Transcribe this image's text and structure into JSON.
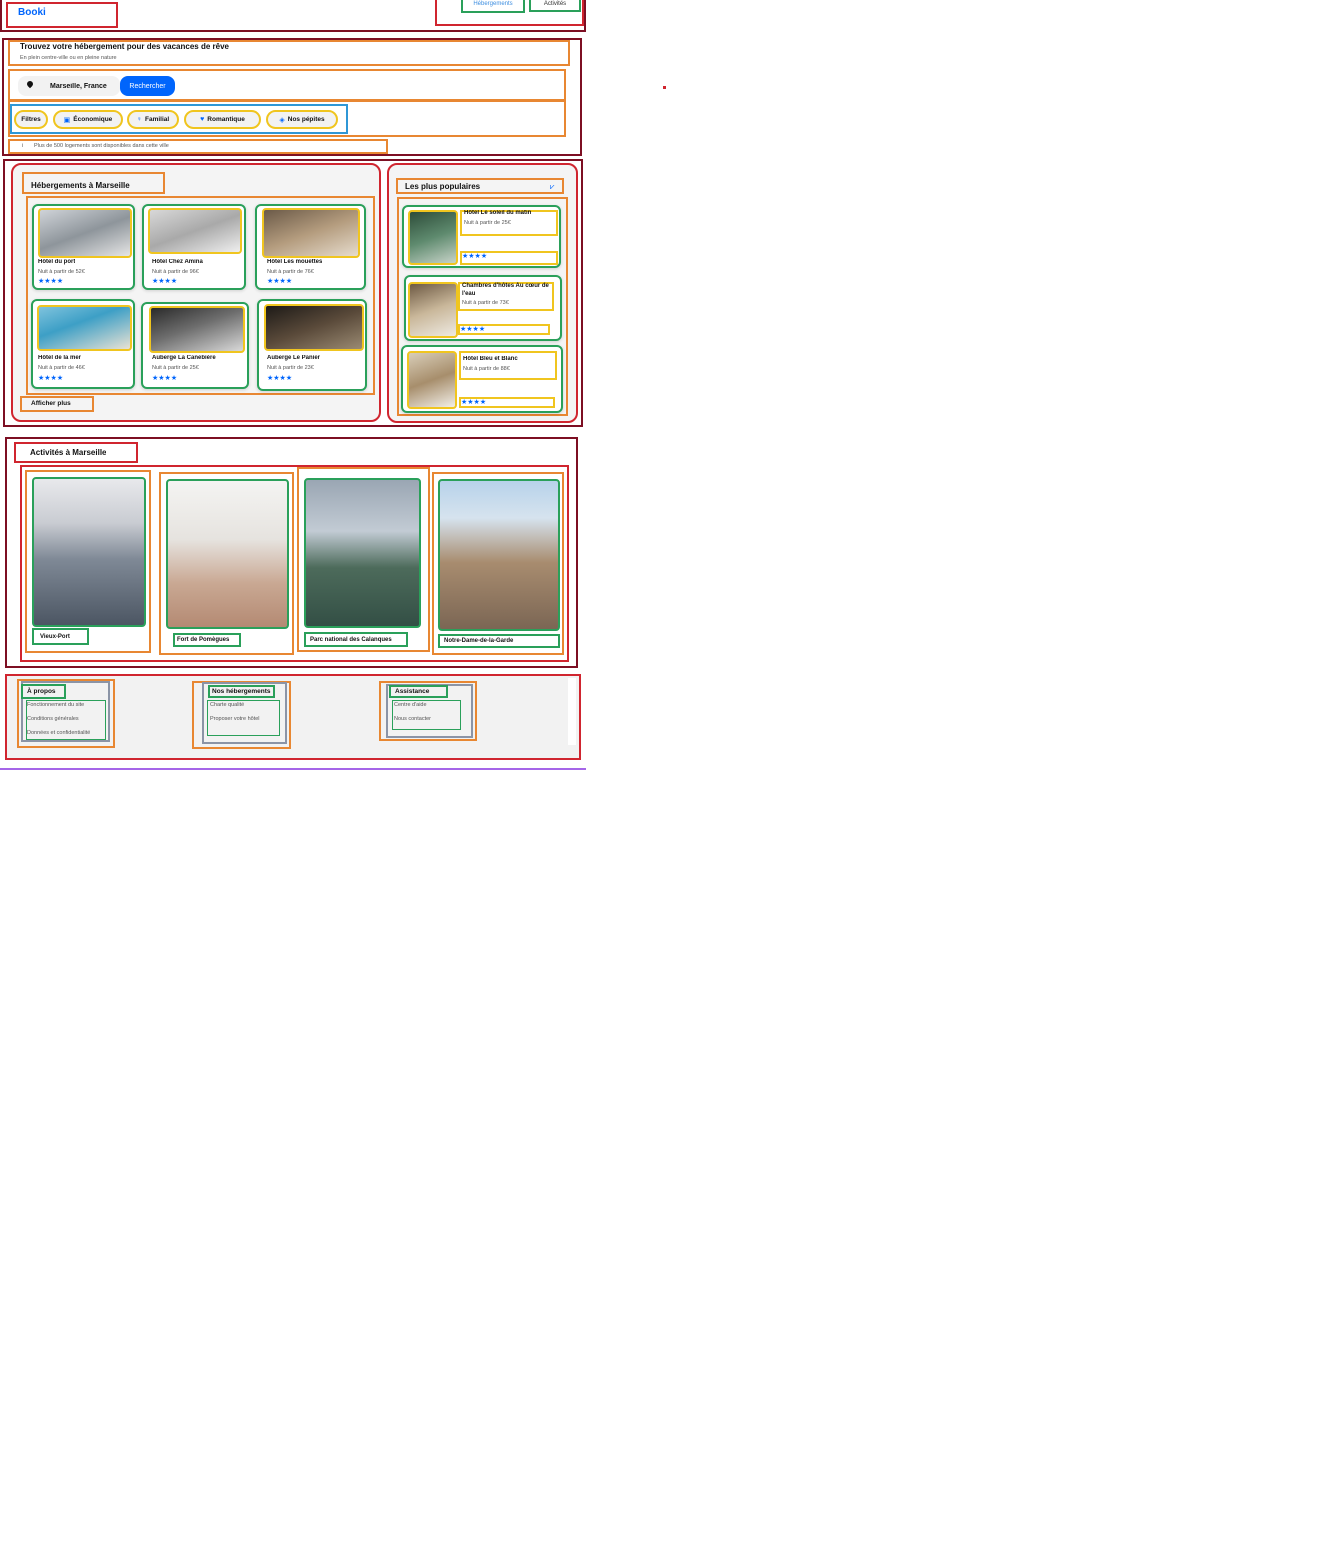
{
  "header": {
    "logo": "Booki",
    "nav": [
      "Hébergements",
      "Activités"
    ]
  },
  "hero": {
    "title": "Trouvez votre hébergement pour des vacances de rêve",
    "subtitle": "En plein centre-ville ou en pleine nature",
    "location_value": "Marseille, France",
    "search_button": "Rechercher"
  },
  "filters": {
    "label": "Filtres",
    "items": [
      "Économique",
      "Familial",
      "Romantique",
      "Nos pépites"
    ]
  },
  "info": "Plus de 500 logements sont disponibles dans cette ville",
  "lodging": {
    "title": "Hébergements à Marseille",
    "show_more": "Afficher plus",
    "cards": [
      {
        "name": "Hôtel du port",
        "price": "Nuit à partir de 52€",
        "stars": "★★★★"
      },
      {
        "name": "Hôtel Chez Amina",
        "price": "Nuit à partir de 96€",
        "stars": "★★★★"
      },
      {
        "name": "Hôtel Les mouettes",
        "price": "Nuit à partir de 76€",
        "stars": "★★★★"
      },
      {
        "name": "Hôtel de la mer",
        "price": "Nuit à partir de 46€",
        "stars": "★★★★"
      },
      {
        "name": "Auberge La Canebière",
        "price": "Nuit à partir de 25€",
        "stars": "★★★★"
      },
      {
        "name": "Auberge Le Panier",
        "price": "Nuit à partir de 23€",
        "stars": "★★★★"
      }
    ]
  },
  "popular": {
    "title": "Les plus populaires",
    "items": [
      {
        "name": "Hôtel Le soleil du matin",
        "price": "Nuit à partir de 25€",
        "stars": "★★★★"
      },
      {
        "name": "Chambres d'hôtes Au cœur de l'eau",
        "price": "Nuit à partir de 73€",
        "stars": "★★★★"
      },
      {
        "name": "Hôtel Bleu et Blanc",
        "price": "Nuit à partir de 88€",
        "stars": "★★★★"
      }
    ]
  },
  "activities": {
    "title": "Activités à Marseille",
    "items": [
      "Vieux-Port",
      "Fort de Pomègues",
      "Parc national des Calanques",
      "Notre-Dame-de-la-Garde"
    ]
  },
  "footer": {
    "columns": [
      {
        "title": "À propos",
        "links": [
          "Fonctionnement du site",
          "Conditions générales",
          "Données et confidentialité"
        ]
      },
      {
        "title": "Nos hébergements",
        "links": [
          "Charte qualité",
          "Proposer votre hôtel"
        ]
      },
      {
        "title": "Assistance",
        "links": [
          "Centre d'aide",
          "Nous contacter"
        ]
      }
    ]
  },
  "colors": {
    "brand_blue": "#0065fc",
    "box_dark_red": "#7d0f23",
    "box_red": "#d0252f",
    "box_orange": "#e88732",
    "box_green": "#2aa05a",
    "box_yellow": "#f0c51f",
    "box_blue": "#2f97d6"
  }
}
